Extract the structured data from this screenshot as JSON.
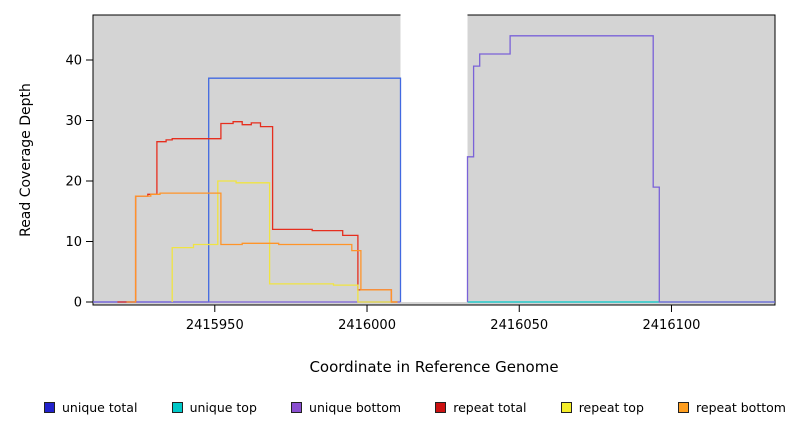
{
  "axes": {
    "xlabel": "Coordinate in Reference Genome",
    "ylabel": "Read Coverage Depth"
  },
  "chart_data": {
    "type": "line",
    "subtype": "step-coverage-plot",
    "title": "",
    "xlabel": "Coordinate in Reference Genome",
    "ylabel": "Read Coverage Depth",
    "xlim": [
      2415910,
      2416134
    ],
    "ylim": [
      0,
      47
    ],
    "x_ticks": [
      2415950,
      2416000,
      2416050,
      2416100
    ],
    "x_tick_labels": [
      "2415950",
      "2416000",
      "2416050",
      "2416100"
    ],
    "y_ticks": [
      0,
      10,
      20,
      30,
      40
    ],
    "y_tick_labels": [
      "0",
      "10",
      "20",
      "30",
      "40"
    ],
    "grid": false,
    "plot_background": "#d4d4d4",
    "border_color": "#000000",
    "gap_region": {
      "x_start": 2416011,
      "x_end": 2416033,
      "color": "#ffffff"
    },
    "series": [
      {
        "name": "unique total",
        "color": "#4169e1",
        "segments": [
          [
            [
              2415910,
              0
            ],
            [
              2415948,
              0
            ],
            [
              2415948,
              37
            ],
            [
              2416011,
              37
            ],
            [
              2416011,
              0
            ]
          ]
        ]
      },
      {
        "name": "unique top",
        "color": "#00c8c8",
        "segments": [
          [
            [
              2416033,
              0
            ],
            [
              2416134,
              0
            ]
          ]
        ]
      },
      {
        "name": "unique bottom",
        "color": "#7a62d8",
        "segments": [
          [
            [
              2415910,
              0
            ],
            [
              2416011,
              0
            ]
          ],
          [
            [
              2416033,
              0
            ],
            [
              2416033,
              24
            ],
            [
              2416035,
              24
            ],
            [
              2416035,
              39
            ],
            [
              2416037,
              39
            ],
            [
              2416037,
              41
            ],
            [
              2416047,
              41
            ],
            [
              2416047,
              44
            ],
            [
              2416094,
              44
            ],
            [
              2416094,
              19
            ],
            [
              2416096,
              19
            ],
            [
              2416096,
              0
            ],
            [
              2416134,
              0
            ]
          ]
        ]
      },
      {
        "name": "repeat total",
        "color": "#e62e1e",
        "segments": [
          [
            [
              2415918,
              0
            ],
            [
              2415924,
              0
            ],
            [
              2415924,
              17.5
            ],
            [
              2415928,
              17.5
            ],
            [
              2415928,
              17.8
            ],
            [
              2415931,
              17.8
            ],
            [
              2415931,
              26.5
            ],
            [
              2415934,
              26.5
            ],
            [
              2415934,
              26.8
            ],
            [
              2415936,
              26.8
            ],
            [
              2415936,
              27
            ],
            [
              2415952,
              27
            ],
            [
              2415952,
              29.5
            ],
            [
              2415956,
              29.5
            ],
            [
              2415956,
              29.8
            ],
            [
              2415959,
              29.8
            ],
            [
              2415959,
              29.3
            ],
            [
              2415962,
              29.3
            ],
            [
              2415962,
              29.6
            ],
            [
              2415965,
              29.6
            ],
            [
              2415965,
              29
            ],
            [
              2415969,
              29
            ],
            [
              2415969,
              12
            ],
            [
              2415982,
              12
            ],
            [
              2415982,
              11.8
            ],
            [
              2415992,
              11.8
            ],
            [
              2415992,
              11
            ],
            [
              2415997,
              11
            ],
            [
              2415997,
              2
            ],
            [
              2416008,
              2
            ],
            [
              2416008,
              0
            ],
            [
              2416010,
              0
            ]
          ]
        ]
      },
      {
        "name": "repeat top",
        "color": "#f0e442",
        "segments": [
          [
            [
              2415936,
              0
            ],
            [
              2415936,
              9
            ],
            [
              2415943,
              9
            ],
            [
              2415943,
              9.5
            ],
            [
              2415951,
              9.5
            ],
            [
              2415951,
              20
            ],
            [
              2415957,
              20
            ],
            [
              2415957,
              19.7
            ],
            [
              2415968,
              19.7
            ],
            [
              2415968,
              3
            ],
            [
              2415989,
              3
            ],
            [
              2415989,
              2.8
            ],
            [
              2415997,
              2.8
            ],
            [
              2415997,
              0
            ],
            [
              2416010,
              0
            ]
          ]
        ]
      },
      {
        "name": "repeat bottom",
        "color": "#ff9429",
        "segments": [
          [
            [
              2415921,
              0
            ],
            [
              2415924,
              0
            ],
            [
              2415924,
              17.5
            ],
            [
              2415929,
              17.5
            ],
            [
              2415929,
              17.8
            ],
            [
              2415932,
              17.8
            ],
            [
              2415932,
              18
            ],
            [
              2415952,
              18
            ],
            [
              2415952,
              9.5
            ],
            [
              2415959,
              9.5
            ],
            [
              2415959,
              9.7
            ],
            [
              2415971,
              9.7
            ],
            [
              2415971,
              9.5
            ],
            [
              2415995,
              9.5
            ],
            [
              2415995,
              8.5
            ],
            [
              2415998,
              8.5
            ],
            [
              2415998,
              2
            ],
            [
              2416008,
              2
            ],
            [
              2416008,
              0
            ],
            [
              2416010,
              0
            ]
          ]
        ]
      }
    ],
    "legend": {
      "position": "bottom",
      "entries": [
        {
          "label": "unique total",
          "color": "#2222cc"
        },
        {
          "label": "unique top",
          "color": "#00c8c8"
        },
        {
          "label": "unique bottom",
          "color": "#8a4fd0"
        },
        {
          "label": "repeat total",
          "color": "#cc1111"
        },
        {
          "label": "repeat top",
          "color": "#f5ee2a"
        },
        {
          "label": "repeat bottom",
          "color": "#ff9e1f"
        }
      ]
    }
  }
}
